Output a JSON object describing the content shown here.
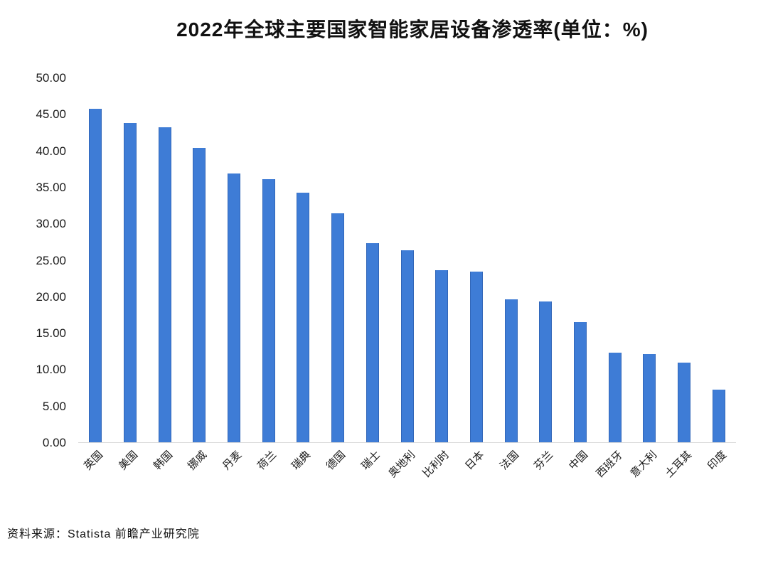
{
  "title": "2022年全球主要国家智能家居设备渗透率(单位：%)",
  "source": "资料来源：Statista 前瞻产业研究院",
  "chart_data": {
    "type": "bar",
    "title": "2022年全球主要国家智能家居设备渗透率(单位：%)",
    "categories": [
      "英国",
      "美国",
      "韩国",
      "挪威",
      "丹麦",
      "荷兰",
      "瑞典",
      "德国",
      "瑞士",
      "奥地利",
      "比利时",
      "日本",
      "法国",
      "芬兰",
      "中国",
      "西班牙",
      "意大利",
      "土耳其",
      "印度"
    ],
    "values": [
      45.7,
      43.8,
      43.2,
      40.4,
      36.8,
      36.1,
      34.2,
      31.4,
      27.3,
      26.3,
      23.6,
      23.4,
      19.6,
      19.3,
      16.5,
      12.3,
      12.1,
      10.9,
      7.2
    ],
    "xlabel": "",
    "ylabel": "",
    "ylim": [
      0,
      50
    ],
    "ytick_step": 5,
    "ytick_labels": [
      "0.00",
      "5.00",
      "10.00",
      "15.00",
      "20.00",
      "25.00",
      "30.00",
      "35.00",
      "40.00",
      "45.00",
      "50.00"
    ],
    "bar_color": "#3e7cd6",
    "grid": false,
    "legend": null,
    "unit": "%"
  }
}
